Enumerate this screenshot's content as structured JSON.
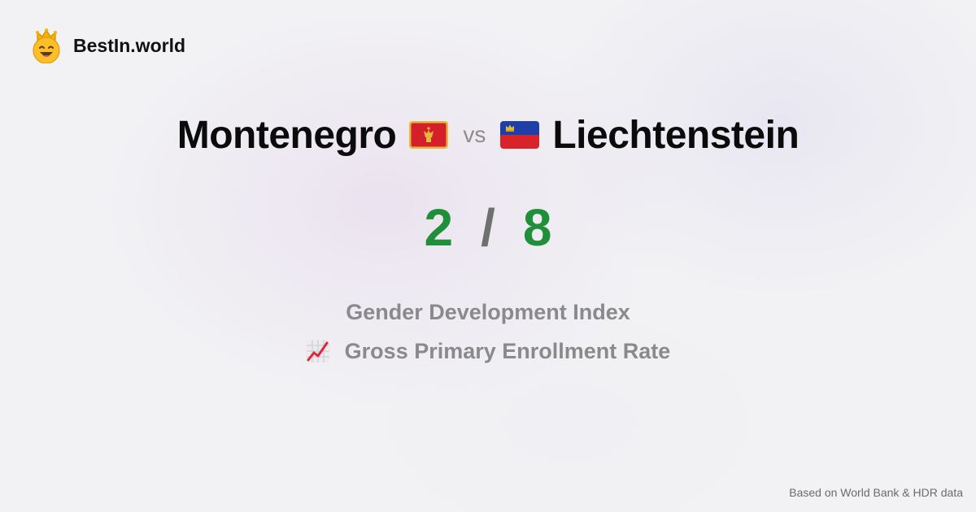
{
  "brand": {
    "name": "BestIn.world",
    "logo_icon": "crowned-smiley-icon"
  },
  "comparison": {
    "left_country": "Montenegro",
    "left_flag": "montenegro-flag-icon",
    "vs_label": "vs",
    "right_country": "Liechtenstein",
    "right_flag": "liechtenstein-flag-icon"
  },
  "score": {
    "left": "2",
    "separator": "/",
    "right": "8"
  },
  "metrics": [
    {
      "label": "Gender Development Index"
    },
    {
      "label": "Gross Primary Enrollment Rate",
      "icon": "chart-increasing-icon"
    }
  ],
  "footer": {
    "source": "Based on World Bank & HDR data"
  },
  "colors": {
    "score_green": "#1f8f3a",
    "text_dark": "#0b0b0b",
    "text_muted": "#8a8a8a"
  }
}
